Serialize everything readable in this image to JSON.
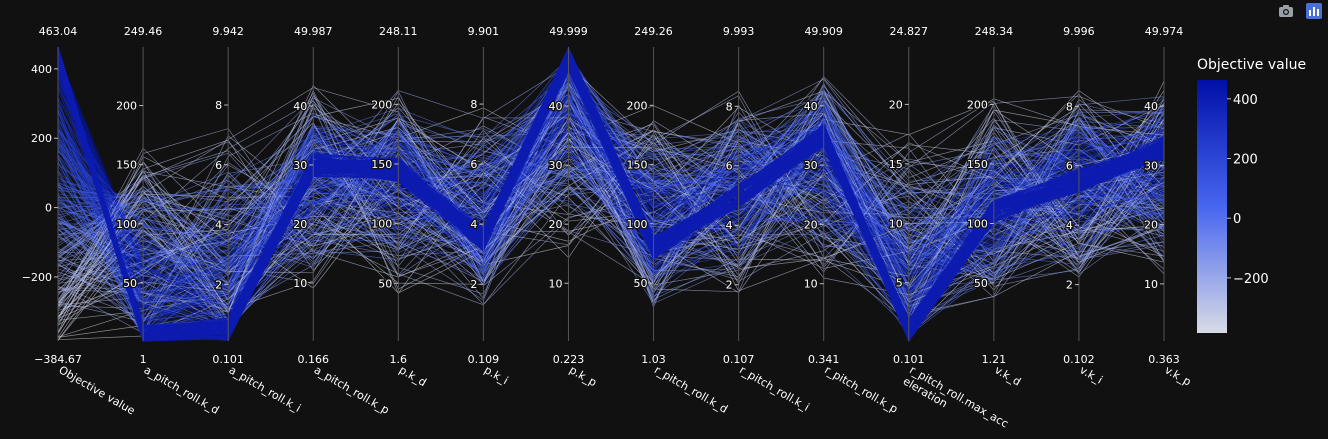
{
  "modebar": {
    "buttons": [
      {
        "icon": "camera-icon",
        "label": "Download plot as a png"
      },
      {
        "icon": "plotly-logo-icon",
        "label": "Produced with Plotly"
      }
    ]
  },
  "chart_data": {
    "type": "parallel_coordinates",
    "background": "#111111",
    "line_color": "#0d1cb0",
    "colorscale": [
      "#d8dbe5",
      "#4766f0",
      "#0010a8"
    ],
    "colorbar": {
      "title": "Objective value",
      "range": [
        -384.67,
        463.04
      ],
      "ticks": [
        400,
        200,
        0,
        -200
      ],
      "tick_labels": [
        "400",
        "200",
        "0",
        "−200"
      ]
    },
    "dimensions": [
      {
        "label": "Objective value",
        "range": [
          -384.67,
          463.04
        ],
        "min_label": "−384.67",
        "max_label": "463.04",
        "ticks": [
          400,
          200,
          0,
          -200
        ],
        "tick_labels": [
          "400",
          "200",
          "0",
          "−200"
        ]
      },
      {
        "label": "a_pitch_roll.k_d",
        "range": [
          1,
          249.46
        ],
        "min_label": "1",
        "max_label": "249.46",
        "ticks": [
          200,
          150,
          100,
          50
        ],
        "tick_labels": [
          "200",
          "150",
          "100",
          "50"
        ]
      },
      {
        "label": "a_pitch_roll.k_i",
        "range": [
          0.101,
          9.942
        ],
        "min_label": "0.101",
        "max_label": "9.942",
        "ticks": [
          8,
          6,
          4,
          2
        ],
        "tick_labels": [
          "8",
          "6",
          "4",
          "2"
        ]
      },
      {
        "label": "a_pitch_roll.k_p",
        "range": [
          0.166,
          49.987
        ],
        "min_label": "0.166",
        "max_label": "49.987",
        "ticks": [
          40,
          30,
          20,
          10
        ],
        "tick_labels": [
          "40",
          "30",
          "20",
          "10"
        ]
      },
      {
        "label": "p.k_d",
        "range": [
          1.6,
          248.11
        ],
        "min_label": "1.6",
        "max_label": "248.11",
        "ticks": [
          200,
          150,
          100,
          50
        ],
        "tick_labels": [
          "200",
          "150",
          "100",
          "50"
        ]
      },
      {
        "label": "p.k_i",
        "range": [
          0.109,
          9.901
        ],
        "min_label": "0.109",
        "max_label": "9.901",
        "ticks": [
          8,
          6,
          4,
          2
        ],
        "tick_labels": [
          "8",
          "6",
          "4",
          "2"
        ]
      },
      {
        "label": "p.k_p",
        "range": [
          0.223,
          49.999
        ],
        "min_label": "0.223",
        "max_label": "49.999",
        "ticks": [
          40,
          30,
          20,
          10
        ],
        "tick_labels": [
          "40",
          "30",
          "20",
          "10"
        ]
      },
      {
        "label": "r_pitch_roll.k_d",
        "range": [
          1.03,
          249.26
        ],
        "min_label": "1.03",
        "max_label": "249.26",
        "ticks": [
          200,
          150,
          100,
          50
        ],
        "tick_labels": [
          "200",
          "150",
          "100",
          "50"
        ]
      },
      {
        "label": "r_pitch_roll.k_i",
        "range": [
          0.107,
          9.993
        ],
        "min_label": "0.107",
        "max_label": "9.993",
        "ticks": [
          8,
          6,
          4,
          2
        ],
        "tick_labels": [
          "8",
          "6",
          "4",
          "2"
        ]
      },
      {
        "label": "r_pitch_roll.k_p",
        "range": [
          0.341,
          49.909
        ],
        "min_label": "0.341",
        "max_label": "49.909",
        "ticks": [
          40,
          30,
          20,
          10
        ],
        "tick_labels": [
          "40",
          "30",
          "20",
          "10"
        ]
      },
      {
        "label": "r_pitch_roll.max_acc\neleration",
        "range": [
          0.101,
          24.827
        ],
        "min_label": "0.101",
        "max_label": "24.827",
        "ticks": [
          20,
          15,
          10,
          5
        ],
        "tick_labels": [
          "20",
          "15",
          "10",
          "5"
        ]
      },
      {
        "label": "v.k_d",
        "range": [
          1.21,
          248.34
        ],
        "min_label": "1.21",
        "max_label": "248.34",
        "ticks": [
          200,
          150,
          100,
          50
        ],
        "tick_labels": [
          "200",
          "150",
          "100",
          "50"
        ]
      },
      {
        "label": "v.k_i",
        "range": [
          0.102,
          9.996
        ],
        "min_label": "0.102",
        "max_label": "9.996",
        "ticks": [
          8,
          6,
          4,
          2
        ],
        "tick_labels": [
          "8",
          "6",
          "4",
          "2"
        ]
      },
      {
        "label": "v.k_p",
        "range": [
          0.363,
          49.974
        ],
        "min_label": "0.363",
        "max_label": "49.974",
        "ticks": [
          40,
          30,
          20,
          10
        ],
        "tick_labels": [
          "40",
          "30",
          "20",
          "10"
        ]
      }
    ],
    "dominant_path": {
      "description_values": [
        440,
        5,
        0.5,
        30,
        145,
        3.5,
        48,
        80,
        5,
        35,
        1,
        110,
        5.5,
        33
      ],
      "objective": 440
    }
  }
}
